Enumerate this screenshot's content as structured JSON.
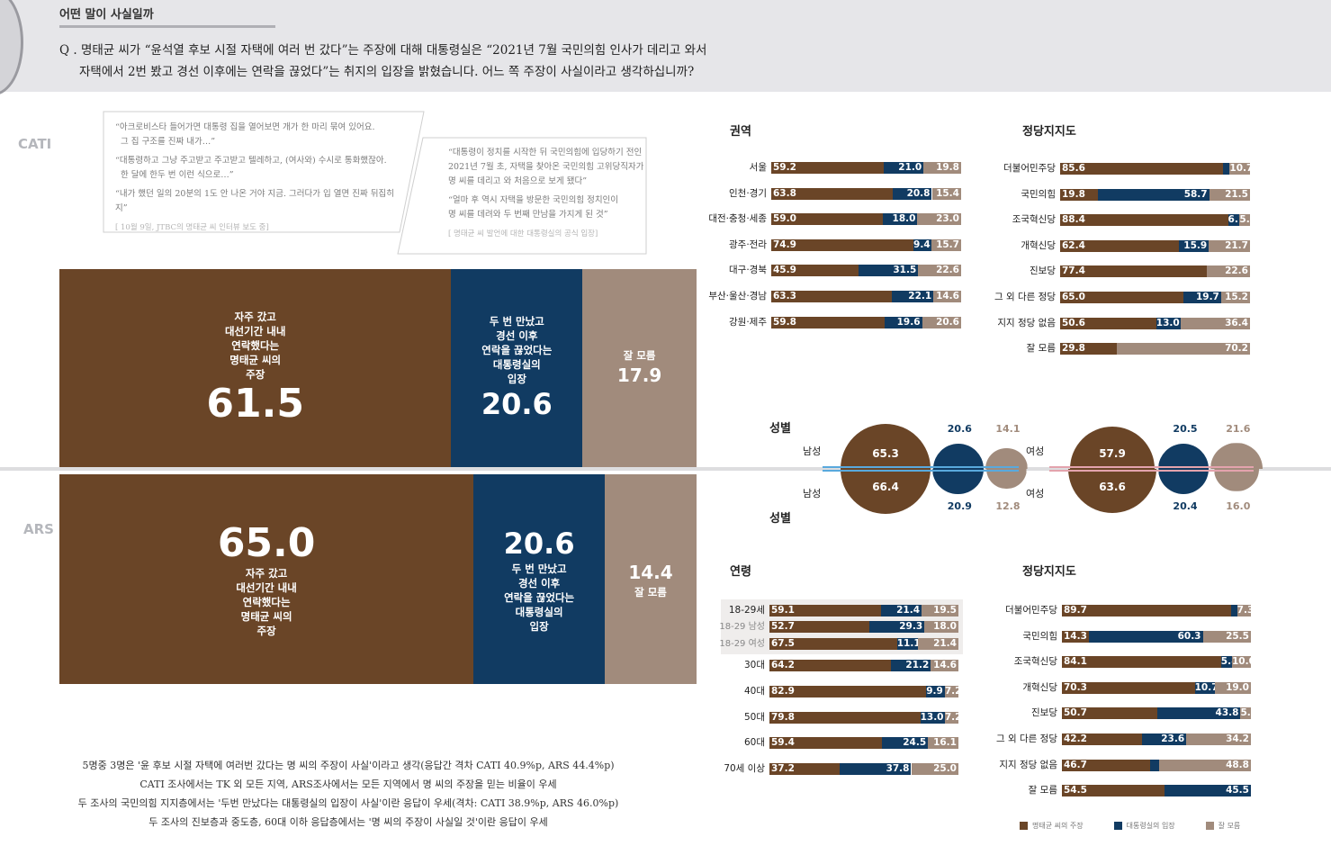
{
  "colors": {
    "claim": "#6a4527",
    "office": "#113b62",
    "unknown": "#a18b7c"
  },
  "header": {
    "section_title": "어떤 말이 사실일까",
    "question_line1": "Q . 명태균 씨가 “윤석열 후보 시절 자택에 여러 번 갔다”는 주장에 대해 대통령실은 “2021년 7월 국민의힘 인사가 데리고 와서",
    "question_line2": "자택에서 2번 봤고 경선 이후에는 연락을 끊었다”는 취지의 입장을 밝혔습니다. 어느 쪽 주장이 사실이라고 생각하십니까?"
  },
  "quotes": {
    "left": [
      "“아크로비스타 들어가면 대통령 집을 열어보면 개가 한 마리 묶여 있어요.",
      "그 집 구조를 진짜 내가…”",
      "“대통령하고 그냥 주고받고 주고받고 텔레하고, (여사와) 수시로 통화했잖아.",
      "한 달에 한두 번 이런 식으로…”",
      "“내가 했던 일의 20분의 1도 안 나온 거야 지금. 그러다가 입 열면 진짜 뒤집히지”"
    ],
    "left_source": "[ 10월 9일, JTBC의 명태균 씨 인터뷰 보도 중]",
    "right": [
      "“대통령이 정치를 시작한 뒤 국민의힘에 입당하기 전인",
      "2021년 7월 초, 자택을 찾아온 국민의힘 고위당직자가",
      "명 씨를 데리고 와 처음으로 보게 됐다”",
      "“얼마 후 역시 자택을 방문한 국민의힘 정치인이",
      "명 씨를 데려와 두 번째 만남을 가지게 된 것”"
    ],
    "right_source": "[ 명태균 씨 발언에 대한 대통령실의 공식 입장]"
  },
  "methods": {
    "cati": "CATI",
    "ars": "ARS"
  },
  "labels": {
    "claim": [
      "자주 갔고",
      "대선기간 내내",
      "연락했다는",
      "명태균 씨의",
      "주장"
    ],
    "office": [
      "두 번 만났고",
      "경선 이후",
      "연락을 끊었다는",
      "대통령실의",
      "입장"
    ],
    "unknown": "잘 모름"
  },
  "summary": [
    "5명중 3명은 '윤 후보 시절 자택에 여러번 갔다는 명 씨의 주장이 사실'이라고 생각(응답간 격차 CATI 40.9%p, ARS 44.4%p)",
    "CATI 조사에서는 TK 외 모든 지역, ARS조사에서는 모든 지역에서 명 씨의 주장을 믿는 비율이 우세",
    "두 조사의 국민의힘 지지층에서는 '두번 만났다는 대통령실의 입장이 사실'이란 응답이 우세(격차: CATI 38.9%p, ARS 46.0%p)",
    "두 조사의 진보층과 중도층, 60대 이하 응답층에서는 '명 씨의 주장이 사실일 것'이란 응답이 우세"
  ],
  "legend": [
    "명태균 씨의 주장",
    "대통령실의 입장",
    "잘 모름"
  ],
  "chart_data": [
    {
      "type": "bar",
      "id": "overall_cati",
      "title": "",
      "categories": [
        "CATI"
      ],
      "series": [
        {
          "name": "명태균 씨의 주장",
          "values": [
            61.5
          ]
        },
        {
          "name": "대통령실의 입장",
          "values": [
            20.6
          ]
        },
        {
          "name": "잘 모름",
          "values": [
            17.9
          ]
        }
      ]
    },
    {
      "type": "bar",
      "id": "overall_ars",
      "title": "",
      "categories": [
        "ARS"
      ],
      "series": [
        {
          "name": "명태균 씨의 주장",
          "values": [
            65.0
          ]
        },
        {
          "name": "대통령실의 입장",
          "values": [
            20.6
          ]
        },
        {
          "name": "잘 모름",
          "values": [
            14.4
          ]
        }
      ]
    },
    {
      "type": "bar",
      "id": "region",
      "title": "권역",
      "rows": [
        {
          "label": "서울",
          "values": [
            59.2,
            21.0,
            19.8
          ]
        },
        {
          "label": "인천·경기",
          "values": [
            63.8,
            20.8,
            15.4
          ]
        },
        {
          "label": "대전·충청·세종",
          "values": [
            59.0,
            18.0,
            23.0
          ]
        },
        {
          "label": "광주·전라",
          "values": [
            74.9,
            9.4,
            15.7
          ]
        },
        {
          "label": "대구·경북",
          "values": [
            45.9,
            31.5,
            22.6
          ]
        },
        {
          "label": "부산·울산·경남",
          "values": [
            63.3,
            22.1,
            14.6
          ]
        },
        {
          "label": "강원·제주",
          "values": [
            59.8,
            19.6,
            20.6
          ]
        }
      ]
    },
    {
      "type": "bar",
      "id": "party_cati",
      "title": "정당지지도",
      "rows": [
        {
          "label": "더불어민주당",
          "values": [
            85.6,
            3.7,
            10.7
          ],
          "shown": [
            "85.6",
            "",
            "10.7"
          ]
        },
        {
          "label": "국민의힘",
          "values": [
            19.8,
            58.7,
            21.5
          ]
        },
        {
          "label": "조국혁신당",
          "values": [
            88.4,
            6.1,
            5.5
          ]
        },
        {
          "label": "개혁신당",
          "values": [
            62.4,
            15.9,
            21.7
          ]
        },
        {
          "label": "진보당",
          "values": [
            77.4,
            0.0,
            22.6
          ],
          "shown": [
            "77.4",
            "",
            "22.6"
          ]
        },
        {
          "label": "그 외 다른 정당",
          "values": [
            65.0,
            19.7,
            15.2
          ]
        },
        {
          "label": "지지 정당 없음",
          "values": [
            50.6,
            13.0,
            36.4
          ]
        },
        {
          "label": "잘 모름",
          "values": [
            29.8,
            0.0,
            70.2
          ],
          "shown": [
            "29.8",
            "",
            "70.2"
          ]
        }
      ]
    },
    {
      "type": "bubble",
      "id": "gender",
      "title": "성별",
      "groups": [
        {
          "label": "남성",
          "cati": [
            65.3,
            20.6,
            14.1
          ],
          "ars": [
            66.4,
            20.9,
            12.8
          ]
        },
        {
          "label": "여성",
          "cati": [
            57.9,
            20.5,
            21.6
          ],
          "ars": [
            63.6,
            20.4,
            16.0
          ]
        }
      ]
    },
    {
      "type": "bar",
      "id": "age",
      "title": "연령",
      "rows": [
        {
          "label": "18-29세",
          "values": [
            59.1,
            21.4,
            19.5
          ]
        },
        {
          "label": "18-29 남성",
          "values": [
            52.7,
            29.3,
            18.0
          ],
          "sub": true
        },
        {
          "label": "18-29 여성",
          "values": [
            67.5,
            11.1,
            21.4
          ],
          "sub": true
        },
        {
          "label": "30대",
          "values": [
            64.2,
            21.2,
            14.6
          ]
        },
        {
          "label": "40대",
          "values": [
            82.9,
            9.9,
            7.2
          ]
        },
        {
          "label": "50대",
          "values": [
            79.8,
            13.0,
            7.2
          ]
        },
        {
          "label": "60대",
          "values": [
            59.4,
            24.5,
            16.1
          ]
        },
        {
          "label": "70세 이상",
          "values": [
            37.2,
            37.8,
            25.0
          ]
        }
      ]
    },
    {
      "type": "bar",
      "id": "party_ars",
      "title": "정당지지도",
      "rows": [
        {
          "label": "더불어민주당",
          "values": [
            89.7,
            3.0,
            7.3
          ],
          "shown": [
            "89.7",
            "",
            "7.3"
          ]
        },
        {
          "label": "국민의힘",
          "values": [
            14.3,
            60.3,
            25.5
          ]
        },
        {
          "label": "조국혁신당",
          "values": [
            84.1,
            5.8,
            10.0
          ]
        },
        {
          "label": "개혁신당",
          "values": [
            70.3,
            10.7,
            19.0
          ]
        },
        {
          "label": "진보당",
          "values": [
            50.7,
            43.8,
            5.5
          ]
        },
        {
          "label": "그 외 다른 정당",
          "values": [
            42.2,
            23.6,
            34.2
          ]
        },
        {
          "label": "지지 정당 없음",
          "values": [
            46.7,
            4.5,
            48.8
          ],
          "shown": [
            "46.7",
            "",
            "48.8"
          ]
        },
        {
          "label": "잘 모름",
          "values": [
            54.5,
            45.5,
            0.0
          ],
          "shown": [
            "54.5",
            "45.5",
            ""
          ]
        }
      ]
    }
  ]
}
